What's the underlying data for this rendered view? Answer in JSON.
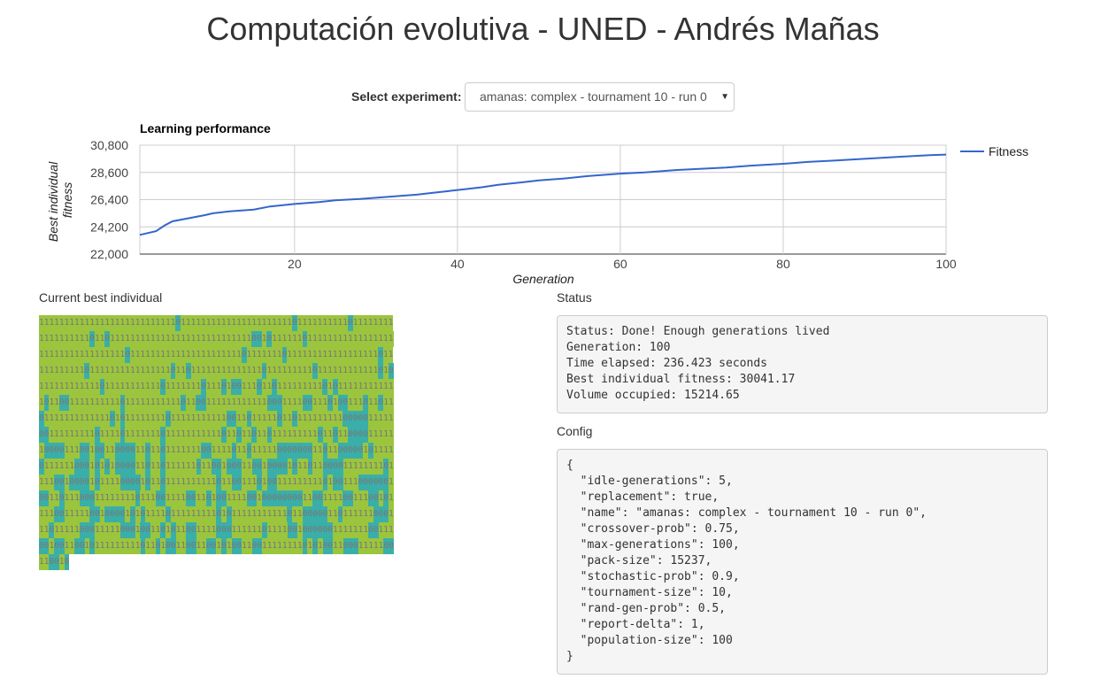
{
  "page": {
    "title": "Computación evolutiva - UNED - Andrés Mañas"
  },
  "experiment": {
    "label": "Select experiment:",
    "selected": "amanas: complex - tournament 10 - run 0"
  },
  "chart_data": {
    "type": "line",
    "title": "Learning performance",
    "xlabel": "Generation",
    "ylabel": "Best individual fitness",
    "xlim": [
      1,
      100
    ],
    "ylim": [
      22000,
      30800
    ],
    "xticks": [
      20,
      40,
      60,
      80,
      100
    ],
    "yticks": [
      22000,
      24200,
      26400,
      28600,
      30800
    ],
    "xtick_labels": [
      "20",
      "40",
      "60",
      "80",
      "100"
    ],
    "ytick_labels": [
      "22,000",
      "24,200",
      "26,400",
      "28,600",
      "30,800"
    ],
    "grid": true,
    "legend_position": "right",
    "series": [
      {
        "name": "Fitness",
        "color": "#3366cc",
        "x": [
          1,
          3,
          4,
          5,
          7,
          9,
          10,
          12,
          15,
          17,
          20,
          23,
          25,
          28,
          30,
          33,
          35,
          37,
          39,
          41,
          43,
          45,
          48,
          50,
          53,
          56,
          58,
          60,
          63,
          65,
          67,
          70,
          73,
          76,
          80,
          83,
          86,
          90,
          94,
          98,
          100
        ],
        "y": [
          23550,
          23850,
          24300,
          24650,
          24900,
          25150,
          25300,
          25450,
          25600,
          25850,
          26050,
          26200,
          26350,
          26450,
          26550,
          26700,
          26800,
          26950,
          27100,
          27250,
          27400,
          27600,
          27800,
          27950,
          28100,
          28300,
          28400,
          28500,
          28600,
          28700,
          28800,
          28900,
          29000,
          29150,
          29300,
          29450,
          29550,
          29700,
          29850,
          30000,
          30041
        ]
      }
    ]
  },
  "individual": {
    "label": "Current best individual",
    "colors": {
      "one": "#9bc53d",
      "zero": "#3aafa9"
    },
    "rows": [
      "1111111111111111111111111110111111111111111111111101111111111011111111",
      "1111111111011011111111111111111111111111110010111111011111111111111111",
      "1111111111111111101111111111111111111111011111110111111111111111111011",
      "1111111110111111111111111101101111111111111101111111110111111111111010",
      "1111111111110111111111110111111101110100111011011111111101011111111111",
      "1011001111111111011111111111011001111111111110001111001110100111011011",
      "0111111111111101011111111011111111111001101111101101111111110000011111",
      "0011111111101111011111110111111111110110110110111111111011011000011111",
      "1000011100100110000110110111111100111101101111100000001101100000101111",
      "0111111000101010000110110111111011001000110010000101101100001111111101",
      "1110010000101111000010110111111111101100111010011111111101001110000001",
      "0011011100011111111011100111100110100111100100000000110011110011100101",
      "1110011111001000010101111011111111101011111111111011000001101111110001",
      "1101111100011111000100110101100111100011111101111001000000111111100111",
      "0010011001011111111101101001100110010100110011111111010100110001111100",
      "110010"
    ]
  },
  "status": {
    "label": "Status",
    "lines": [
      "Status: Done! Enough generations lived",
      "Generation: 100",
      "Time elapsed: 236.423 seconds",
      "Best individual fitness: 30041.17",
      "Volume occupied: 15214.65"
    ]
  },
  "config": {
    "label": "Config",
    "text": "{\n  \"idle-generations\": 5,\n  \"replacement\": true,\n  \"name\": \"amanas: complex - tournament 10 - run 0\",\n  \"crossover-prob\": 0.75,\n  \"max-generations\": 100,\n  \"pack-size\": 15237,\n  \"stochastic-prob\": 0.9,\n  \"tournament-size\": 10,\n  \"rand-gen-prob\": 0.5,\n  \"report-delta\": 1,\n  \"population-size\": 100\n}"
  }
}
